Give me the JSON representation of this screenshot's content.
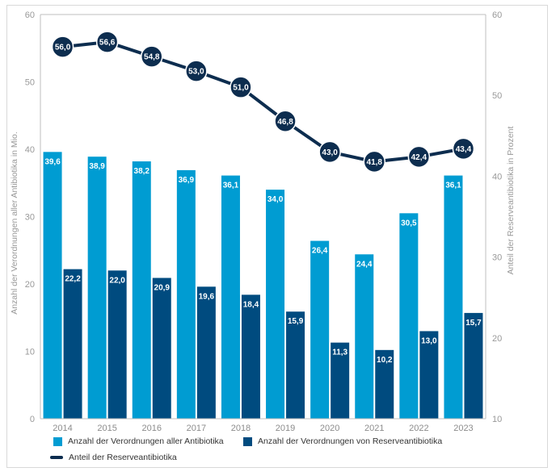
{
  "chart_data": {
    "type": "bar",
    "categories": [
      "2014",
      "2015",
      "2016",
      "2017",
      "2018",
      "2019",
      "2020",
      "2021",
      "2022",
      "2023"
    ],
    "series": [
      {
        "name": "Anzahl der Verordnungen aller Antibiotika",
        "kind": "bar",
        "axis": "left",
        "color": "#009cd2",
        "values": [
          39.6,
          38.9,
          38.2,
          36.9,
          36.1,
          34.0,
          26.4,
          24.4,
          30.5,
          36.1
        ],
        "labels": [
          "39,6",
          "38,9",
          "38,2",
          "36,9",
          "36,1",
          "34,0",
          "26,4",
          "24,4",
          "30,5",
          "36,1"
        ]
      },
      {
        "name": "Anzahl der Verordnungen von Reserveantibiotika",
        "kind": "bar",
        "axis": "left",
        "color": "#004b7f",
        "values": [
          22.2,
          22.0,
          20.9,
          19.6,
          18.4,
          15.9,
          11.3,
          10.2,
          13.0,
          15.7
        ],
        "labels": [
          "22,2",
          "22,0",
          "20,9",
          "19,6",
          "18,4",
          "15,9",
          "11,3",
          "10,2",
          "13,0",
          "15,7"
        ]
      },
      {
        "name": "Anteil der Reserveantibiotika",
        "kind": "line",
        "axis": "right",
        "color": "#0d2d4f",
        "values": [
          56.0,
          56.6,
          54.8,
          53.0,
          51.0,
          46.8,
          43.0,
          41.8,
          42.4,
          43.4
        ],
        "labels": [
          "56,0",
          "56,6",
          "54,8",
          "53,0",
          "51,0",
          "46,8",
          "43,0",
          "41,8",
          "42,4",
          "43,4"
        ]
      }
    ],
    "y_left": {
      "label": "Anzahl der Verordnungen aller Antibiotika in Mio.",
      "ylim": [
        0,
        60
      ],
      "ticks": [
        "0",
        "10",
        "20",
        "30",
        "40",
        "50",
        "60"
      ]
    },
    "y_right": {
      "label": "Anteil der Reserveantibiotika in Prozent",
      "ylim": [
        10,
        60
      ],
      "ticks": [
        "10",
        "20",
        "30",
        "40",
        "50",
        "60"
      ]
    },
    "title": "",
    "xlabel": "",
    "grid": false,
    "legend_position": "bottom"
  }
}
